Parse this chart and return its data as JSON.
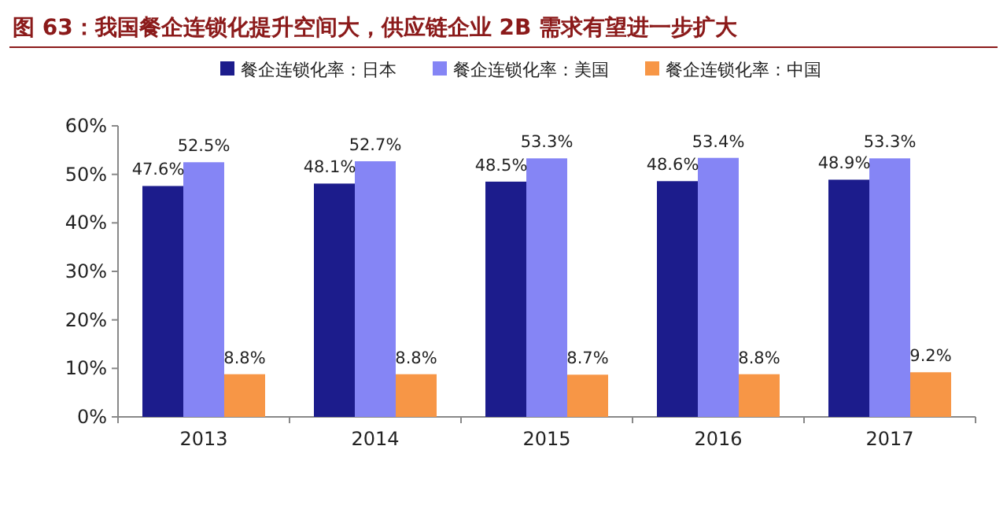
{
  "chart_data": {
    "type": "bar",
    "title": "图 63：我国餐企连锁化提升空间大，供应链企业 2B 需求有望进一步扩大",
    "categories": [
      "2013",
      "2014",
      "2015",
      "2016",
      "2017"
    ],
    "series": [
      {
        "name": "餐企连锁化率：日本",
        "color": "#1c1c8c",
        "values": [
          47.6,
          48.1,
          48.5,
          48.6,
          48.9
        ],
        "value_labels": [
          "47.6%",
          "48.1%",
          "48.5%",
          "48.6%",
          "48.9%"
        ]
      },
      {
        "name": "餐企连锁化率：美国",
        "color": "#8585f5",
        "values": [
          52.5,
          52.7,
          53.3,
          53.4,
          53.3
        ],
        "value_labels": [
          "52.5%",
          "52.7%",
          "53.3%",
          "53.4%",
          "53.3%"
        ]
      },
      {
        "name": "餐企连锁化率：中国",
        "color": "#f79646",
        "values": [
          8.8,
          8.8,
          8.7,
          8.8,
          9.2
        ],
        "value_labels": [
          "8.8%",
          "8.8%",
          "8.7%",
          "8.8%",
          "9.2%"
        ]
      }
    ],
    "ylim": [
      0,
      60
    ],
    "yticks": [
      {
        "value": 0,
        "label": "0%"
      },
      {
        "value": 10,
        "label": "10%"
      },
      {
        "value": 20,
        "label": "20%"
      },
      {
        "value": 30,
        "label": "30%"
      },
      {
        "value": 40,
        "label": "40%"
      },
      {
        "value": 50,
        "label": "50%"
      },
      {
        "value": 60,
        "label": "60%"
      }
    ],
    "legend": "top"
  }
}
